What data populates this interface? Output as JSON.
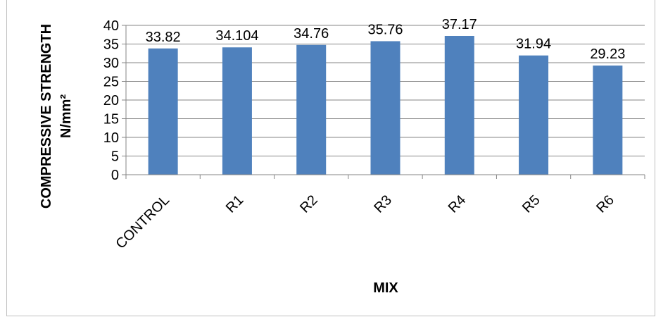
{
  "chart_data": {
    "type": "bar",
    "categories": [
      "CONTROL",
      "R1",
      "R2",
      "R3",
      "R4",
      "R5",
      "R6"
    ],
    "values": [
      33.82,
      34.104,
      34.76,
      35.76,
      37.17,
      31.94,
      29.23
    ],
    "data_labels": [
      "33.82",
      "34.104",
      "34.76",
      "35.76",
      "37.17",
      "31.94",
      "29.23"
    ],
    "title": "",
    "xlabel": "MIX",
    "ylabel_line1": "COMPRESSIVE STRENGTH",
    "ylabel_line2": "N/mm²",
    "ylim": [
      0,
      40
    ],
    "yticks": [
      0,
      5,
      10,
      15,
      20,
      25,
      30,
      35,
      40
    ],
    "grid": true,
    "legend": "none",
    "bar_color": "#4f81bd"
  }
}
